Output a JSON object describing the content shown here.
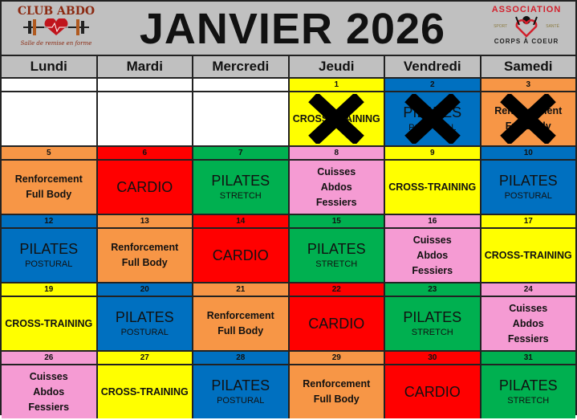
{
  "title": "JANVIER 2026",
  "logos": {
    "left": {
      "name": "CLUB ABDO",
      "tagline": "Salle de remise en forme"
    },
    "right": {
      "top": "ASSOCIATION",
      "bottom": "CORPS À COEUR",
      "left_tag": "SPORT",
      "right_tag": "SANTÉ"
    }
  },
  "days": [
    "Lundi",
    "Mardi",
    "Mercredi",
    "Jeudi",
    "Vendredi",
    "Samedi"
  ],
  "colors": {
    "orange": "#f79646",
    "red": "#ff0000",
    "green": "#00b050",
    "pink": "#f59bd3",
    "yellow": "#ffff00",
    "blue": "#0070c0",
    "white": "#ffffff"
  },
  "weeks": [
    [
      {
        "day": "",
        "color": "white",
        "lines": []
      },
      {
        "day": "",
        "color": "white",
        "lines": []
      },
      {
        "day": "",
        "color": "white",
        "lines": []
      },
      {
        "day": "1",
        "color": "yellow",
        "cancelled": true,
        "lines": [
          {
            "t": "CROSS-TRAINING",
            "s": "bold"
          }
        ]
      },
      {
        "day": "2",
        "color": "blue",
        "cancelled": true,
        "lines": [
          {
            "t": "PILATES",
            "s": "big"
          },
          {
            "t": "POSTURAL",
            "s": "small"
          }
        ]
      },
      {
        "day": "3",
        "color": "orange",
        "cancelled": true,
        "lines": [
          {
            "t": "Renforcement",
            "s": "bold"
          },
          {
            "t": "Full Body",
            "s": "bold"
          }
        ]
      }
    ],
    [
      {
        "day": "5",
        "color": "orange",
        "lines": [
          {
            "t": "Renforcement",
            "s": "bold"
          },
          {
            "t": "Full Body",
            "s": "bold"
          }
        ]
      },
      {
        "day": "6",
        "color": "red",
        "lines": [
          {
            "t": "CARDIO",
            "s": "big"
          }
        ]
      },
      {
        "day": "7",
        "color": "green",
        "lines": [
          {
            "t": "PILATES",
            "s": "big"
          },
          {
            "t": "STRETCH",
            "s": "small"
          }
        ]
      },
      {
        "day": "8",
        "color": "pink",
        "lines": [
          {
            "t": "Cuisses",
            "s": "bold"
          },
          {
            "t": "Abdos",
            "s": "bold"
          },
          {
            "t": "Fessiers",
            "s": "bold"
          }
        ]
      },
      {
        "day": "9",
        "color": "yellow",
        "lines": [
          {
            "t": "CROSS-TRAINING",
            "s": "bold"
          }
        ]
      },
      {
        "day": "10",
        "color": "blue",
        "lines": [
          {
            "t": "PILATES",
            "s": "big"
          },
          {
            "t": "POSTURAL",
            "s": "small"
          }
        ]
      }
    ],
    [
      {
        "day": "12",
        "color": "blue",
        "lines": [
          {
            "t": "PILATES",
            "s": "big"
          },
          {
            "t": "POSTURAL",
            "s": "small"
          }
        ]
      },
      {
        "day": "13",
        "color": "orange",
        "lines": [
          {
            "t": "Renforcement",
            "s": "bold"
          },
          {
            "t": "Full Body",
            "s": "bold"
          }
        ]
      },
      {
        "day": "14",
        "color": "red",
        "lines": [
          {
            "t": "CARDIO",
            "s": "big"
          }
        ]
      },
      {
        "day": "15",
        "color": "green",
        "lines": [
          {
            "t": "PILATES",
            "s": "big"
          },
          {
            "t": "STRETCH",
            "s": "small"
          }
        ]
      },
      {
        "day": "16",
        "color": "pink",
        "lines": [
          {
            "t": "Cuisses",
            "s": "bold"
          },
          {
            "t": "Abdos",
            "s": "bold"
          },
          {
            "t": "Fessiers",
            "s": "bold"
          }
        ]
      },
      {
        "day": "17",
        "color": "yellow",
        "lines": [
          {
            "t": "CROSS-TRAINING",
            "s": "bold"
          }
        ]
      }
    ],
    [
      {
        "day": "19",
        "color": "yellow",
        "lines": [
          {
            "t": "CROSS-TRAINING",
            "s": "bold"
          }
        ]
      },
      {
        "day": "20",
        "color": "blue",
        "lines": [
          {
            "t": "PILATES",
            "s": "big"
          },
          {
            "t": "POSTURAL",
            "s": "small"
          }
        ]
      },
      {
        "day": "21",
        "color": "orange",
        "lines": [
          {
            "t": "Renforcement",
            "s": "bold"
          },
          {
            "t": "Full Body",
            "s": "bold"
          }
        ]
      },
      {
        "day": "22",
        "color": "red",
        "lines": [
          {
            "t": "CARDIO",
            "s": "big"
          }
        ]
      },
      {
        "day": "23",
        "color": "green",
        "lines": [
          {
            "t": "PILATES",
            "s": "big"
          },
          {
            "t": "STRETCH",
            "s": "small"
          }
        ]
      },
      {
        "day": "24",
        "color": "pink",
        "lines": [
          {
            "t": "Cuisses",
            "s": "bold"
          },
          {
            "t": "Abdos",
            "s": "bold"
          },
          {
            "t": "Fessiers",
            "s": "bold"
          }
        ]
      }
    ],
    [
      {
        "day": "26",
        "color": "pink",
        "lines": [
          {
            "t": "Cuisses",
            "s": "bold"
          },
          {
            "t": "Abdos",
            "s": "bold"
          },
          {
            "t": "Fessiers",
            "s": "bold"
          }
        ]
      },
      {
        "day": "27",
        "color": "yellow",
        "lines": [
          {
            "t": "CROSS-TRAINING",
            "s": "bold"
          }
        ]
      },
      {
        "day": "28",
        "color": "blue",
        "lines": [
          {
            "t": "PILATES",
            "s": "big"
          },
          {
            "t": "POSTURAL",
            "s": "small"
          }
        ]
      },
      {
        "day": "29",
        "color": "orange",
        "lines": [
          {
            "t": "Renforcement",
            "s": "bold"
          },
          {
            "t": "Full Body",
            "s": "bold"
          }
        ]
      },
      {
        "day": "30",
        "color": "red",
        "lines": [
          {
            "t": "CARDIO",
            "s": "big"
          }
        ]
      },
      {
        "day": "31",
        "color": "green",
        "lines": [
          {
            "t": "PILATES",
            "s": "big"
          },
          {
            "t": "STRETCH",
            "s": "small"
          }
        ]
      }
    ]
  ]
}
